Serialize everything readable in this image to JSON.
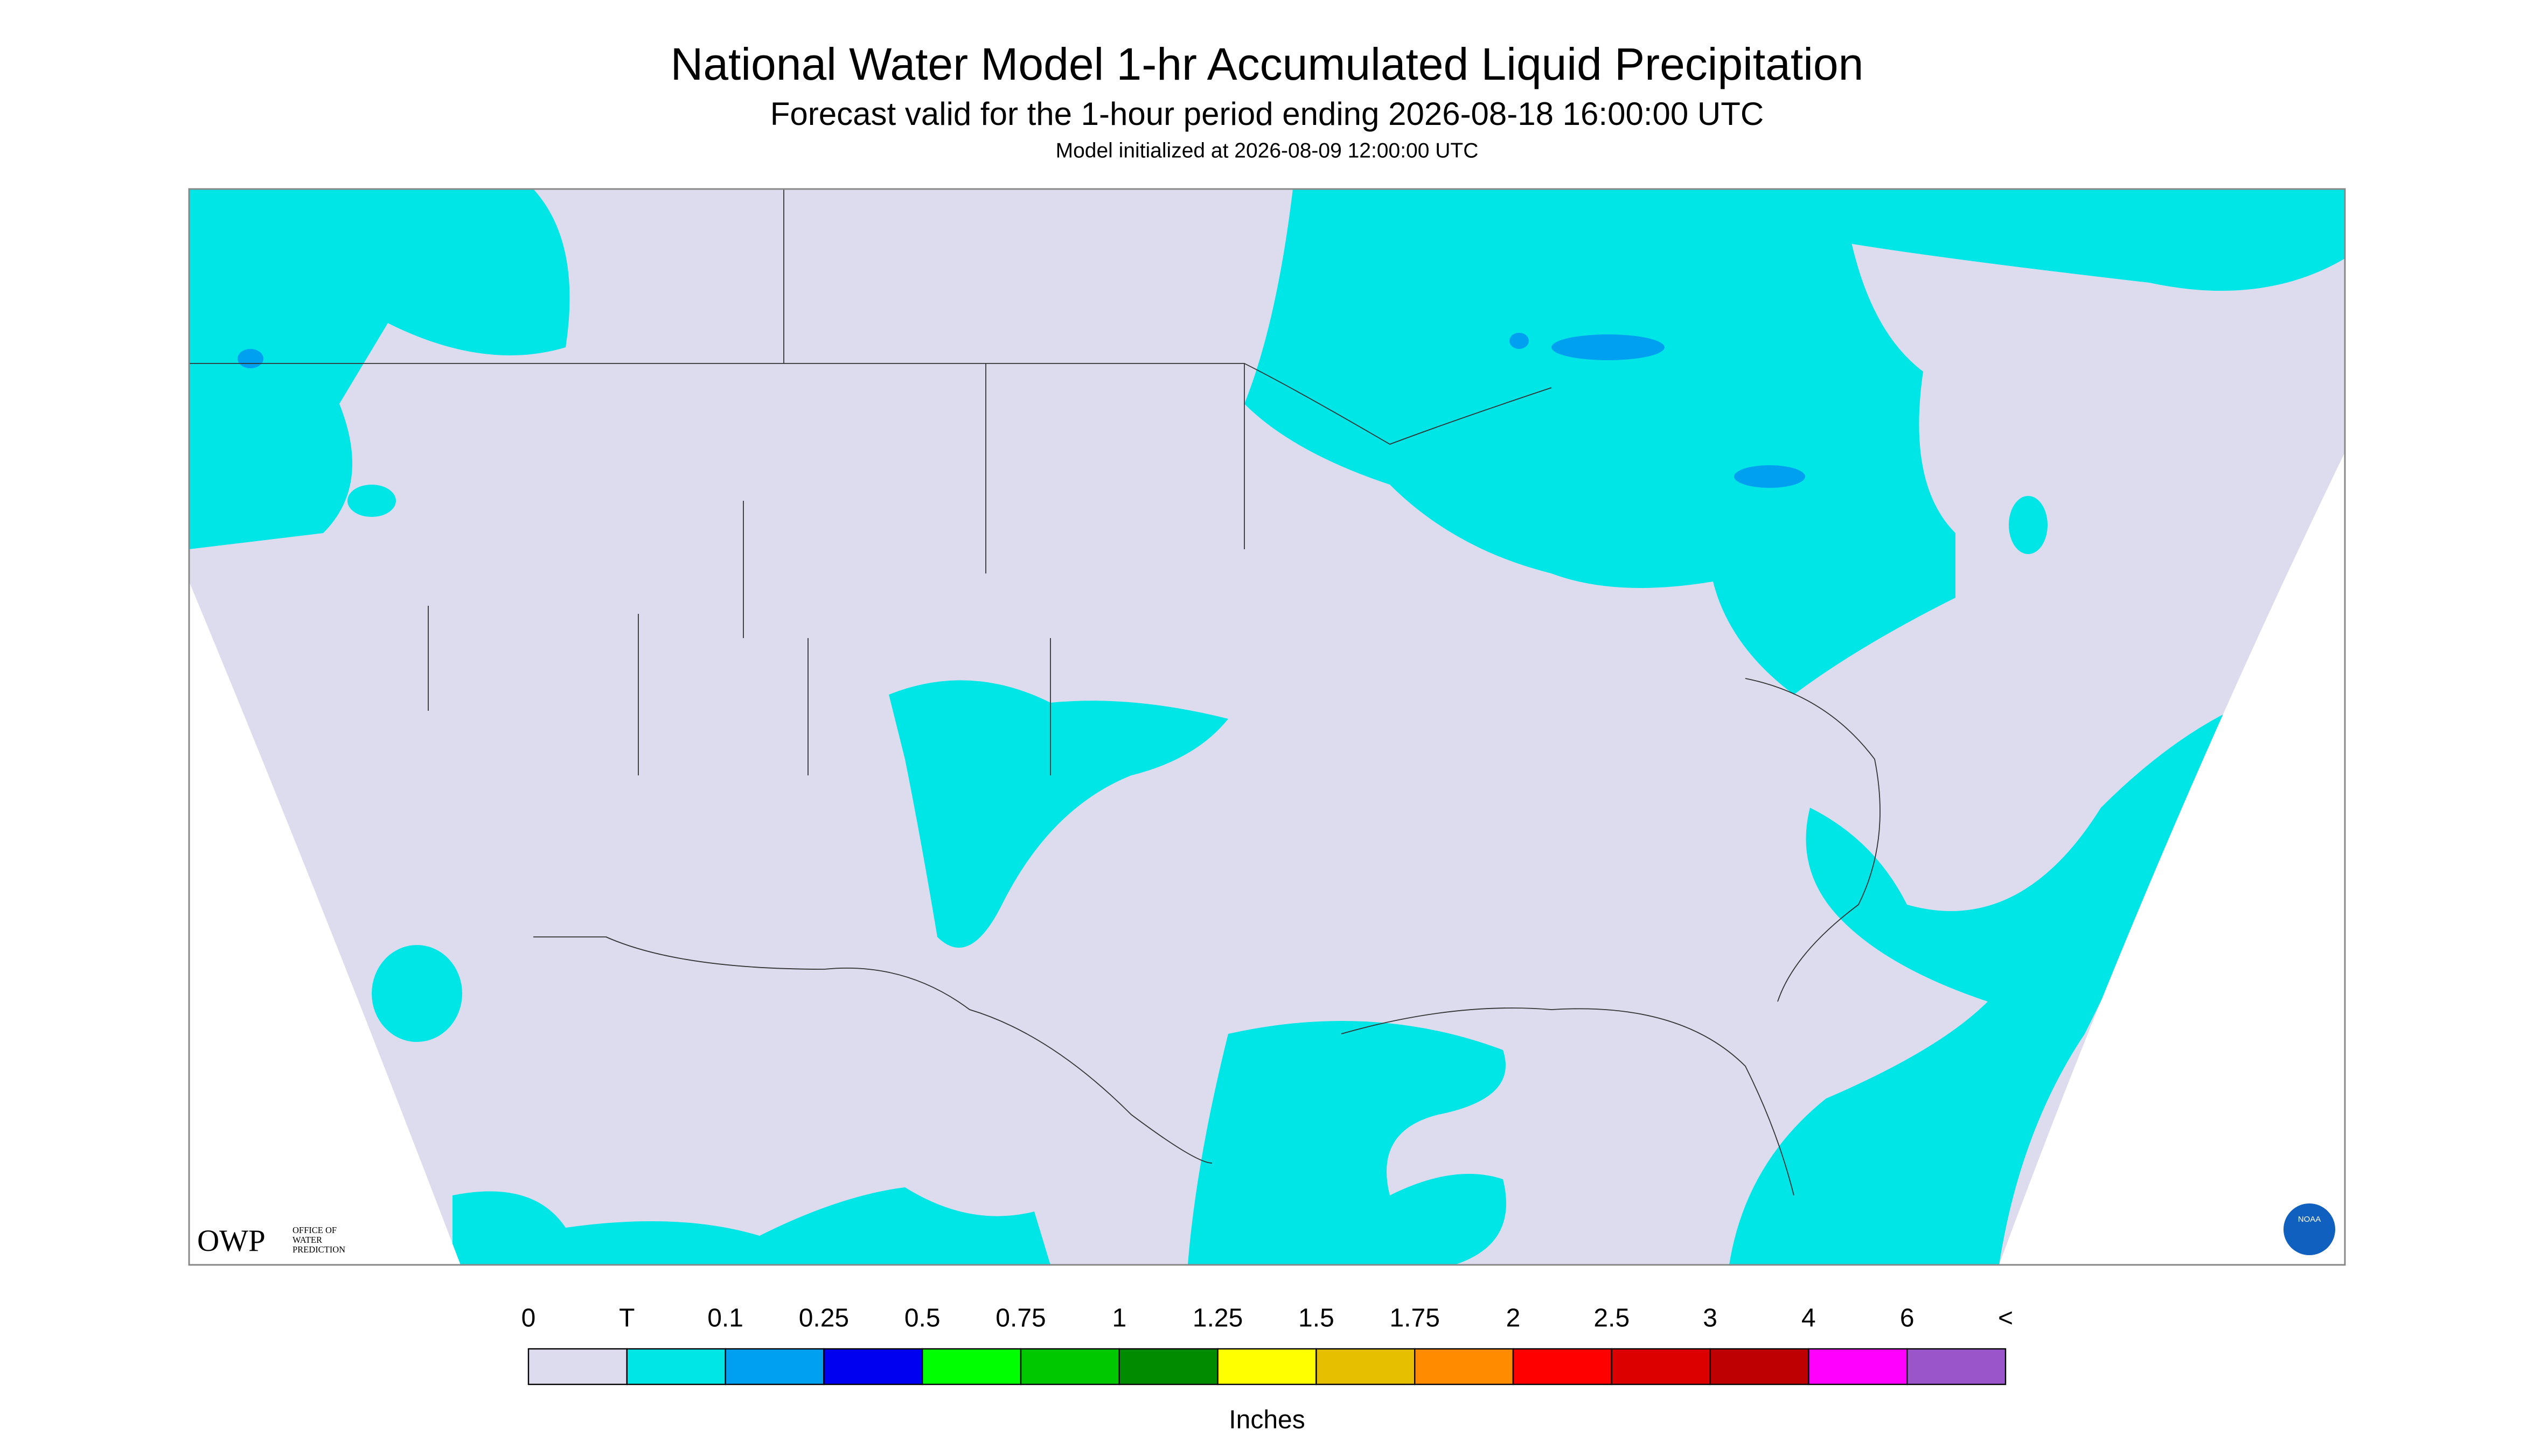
{
  "header": {
    "title": "National Water Model 1-hr Accumulated Liquid Precipitation",
    "subtitle": "Forecast valid for the 1-hour period ending 2026-08-18 16:00:00 UTC",
    "init": "Model initialized at 2026-08-09 12:00:00 UTC"
  },
  "logo": {
    "owp": "OWP",
    "office": [
      "OFFICE OF",
      "WATER",
      "PREDICTION"
    ],
    "noaa": "NOAA"
  },
  "legend": {
    "labels": [
      "0",
      "T",
      "0.1",
      "0.25",
      "0.5",
      "0.75",
      "1",
      "1.25",
      "1.5",
      "1.75",
      "2",
      "2.5",
      "3",
      "4",
      "6",
      "<"
    ],
    "colors": [
      "#dcdcee",
      "#00e5e5",
      "#00a0f0",
      "#0000f0",
      "#00ff00",
      "#00c800",
      "#008c00",
      "#ffff00",
      "#e6c000",
      "#ff8c00",
      "#ff0000",
      "#dc0000",
      "#be0000",
      "#ff00ff",
      "#9955c9"
    ],
    "unit": "Inches"
  }
}
